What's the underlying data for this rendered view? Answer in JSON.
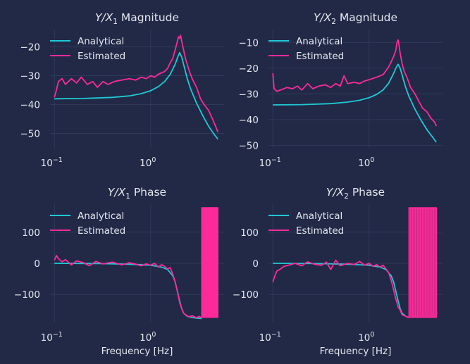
{
  "figure": {
    "background": "#212946",
    "text_color": "#e5e7ee",
    "grid_color": "#2f3a5b",
    "series_colors": {
      "Analytical": "#1ec9d4",
      "Estimated": "#fe2a9a"
    }
  },
  "chart_data": [
    {
      "type": "line",
      "title_base": "Y/X",
      "title_sub": "1",
      "title_rest": " Magnitude",
      "xlabel": "",
      "ylabel": "",
      "xscale": "log",
      "xlim": [
        0.09,
        5.8
      ],
      "ylim": [
        -55,
        -14
      ],
      "yticks": [
        -20,
        -30,
        -40,
        -50
      ],
      "ytick_labels": [
        "−20",
        "−30",
        "−40",
        "−50"
      ],
      "xticks": [
        0.1,
        1
      ],
      "xtick_base": "10",
      "xtick_exps": [
        "−1",
        "0"
      ],
      "grid": true,
      "legend_position": "top-left",
      "series": [
        {
          "name": "Analytical",
          "x": [
            0.1,
            0.2,
            0.4,
            0.6,
            0.8,
            1.0,
            1.2,
            1.4,
            1.6,
            1.8,
            1.9,
            2.0,
            2.1,
            2.2,
            2.4,
            2.6,
            3.0,
            3.5,
            4.0,
            4.5,
            5.0
          ],
          "y": [
            -38,
            -37.9,
            -37.5,
            -37,
            -36.2,
            -35.2,
            -33.8,
            -32,
            -29.5,
            -26,
            -23.8,
            -22,
            -23.5,
            -26,
            -31,
            -34.5,
            -39.5,
            -44,
            -47.5,
            -50,
            -52
          ]
        },
        {
          "name": "Estimated",
          "x": [
            0.1,
            0.105,
            0.11,
            0.12,
            0.13,
            0.14,
            0.15,
            0.17,
            0.19,
            0.22,
            0.25,
            0.28,
            0.32,
            0.36,
            0.42,
            0.5,
            0.6,
            0.7,
            0.8,
            0.9,
            1.0,
            1.1,
            1.2,
            1.3,
            1.4,
            1.5,
            1.6,
            1.7,
            1.8,
            1.9,
            1.95,
            2.0,
            2.05,
            2.1,
            2.2,
            2.3,
            2.5,
            2.7,
            3.0,
            3.3,
            3.6,
            4.0,
            4.4,
            4.8,
            5.0
          ],
          "y": [
            -37.5,
            -35,
            -32,
            -31,
            -33,
            -32,
            -31,
            -32.5,
            -30.5,
            -33,
            -32,
            -34,
            -32,
            -33,
            -32,
            -31.5,
            -31,
            -31.5,
            -30.5,
            -31,
            -30,
            -30.5,
            -29.5,
            -29,
            -28.5,
            -27.5,
            -25.5,
            -24,
            -21,
            -18,
            -16.5,
            -17,
            -16,
            -18,
            -21,
            -24,
            -28,
            -31,
            -34,
            -38,
            -40,
            -42,
            -45,
            -48,
            -49.5
          ]
        }
      ]
    },
    {
      "type": "line",
      "title_base": "Y/X",
      "title_sub": "2",
      "title_rest": " Magnitude",
      "xlabel": "",
      "ylabel": "",
      "xscale": "log",
      "xlim": [
        0.09,
        5.8
      ],
      "ylim": [
        -51,
        -5
      ],
      "yticks": [
        -10,
        -20,
        -30,
        -40,
        -50
      ],
      "ytick_labels": [
        "−10",
        "−20",
        "−30",
        "−40",
        "−50"
      ],
      "xticks": [
        0.1,
        1
      ],
      "xtick_base": "10",
      "xtick_exps": [
        "−1",
        "0"
      ],
      "grid": true,
      "legend_position": "top-left",
      "series": [
        {
          "name": "Analytical",
          "x": [
            0.1,
            0.2,
            0.4,
            0.6,
            0.8,
            1.0,
            1.2,
            1.4,
            1.6,
            1.8,
            1.9,
            2.0,
            2.1,
            2.2,
            2.4,
            2.6,
            3.0,
            3.5,
            4.0,
            4.5,
            5.0
          ],
          "y": [
            -34.3,
            -34.2,
            -33.8,
            -33.2,
            -32.5,
            -31.5,
            -30.2,
            -28.5,
            -25.8,
            -22,
            -20,
            -18.5,
            -20,
            -22.5,
            -27.5,
            -31,
            -36,
            -40.5,
            -44,
            -46.5,
            -48.8
          ]
        },
        {
          "name": "Estimated",
          "x": [
            0.1,
            0.103,
            0.11,
            0.12,
            0.14,
            0.16,
            0.18,
            0.2,
            0.23,
            0.26,
            0.3,
            0.35,
            0.4,
            0.45,
            0.5,
            0.55,
            0.6,
            0.7,
            0.8,
            0.9,
            1.0,
            1.1,
            1.2,
            1.3,
            1.4,
            1.5,
            1.6,
            1.7,
            1.8,
            1.9,
            1.95,
            2.0,
            2.05,
            2.1,
            2.2,
            2.3,
            2.5,
            2.7,
            3.0,
            3.3,
            3.6,
            4.0,
            4.4,
            4.8,
            5.0
          ],
          "y": [
            -22,
            -28,
            -29,
            -28.5,
            -27.5,
            -28,
            -27,
            -28.5,
            -26,
            -28,
            -27,
            -26.5,
            -27.5,
            -26,
            -27,
            -23,
            -26,
            -25.5,
            -26,
            -25,
            -24.5,
            -24,
            -23.5,
            -23,
            -22.5,
            -21,
            -19.5,
            -17.5,
            -15.5,
            -13,
            -10,
            -9,
            -11,
            -14,
            -18,
            -21,
            -24,
            -27.5,
            -30,
            -33,
            -35.5,
            -37,
            -39.5,
            -41,
            -42.5
          ]
        }
      ]
    },
    {
      "type": "line",
      "title_base": "Y/X",
      "title_sub": "1",
      "title_rest": " Phase",
      "xlabel": "Frequency [Hz]",
      "ylabel": "",
      "xscale": "log",
      "xlim": [
        0.09,
        5.8
      ],
      "ylim": [
        -190,
        190
      ],
      "yticks": [
        100,
        0,
        -100
      ],
      "ytick_labels": [
        "100",
        "0",
        "−100"
      ],
      "xticks": [
        0.1,
        1
      ],
      "xtick_base": "10",
      "xtick_exps": [
        "−1",
        "0"
      ],
      "grid": true,
      "legend_position": "top-left",
      "wrap_band": {
        "x_start": 3.4,
        "x_end": 5.0,
        "y_top": 180,
        "y_bottom": -175
      },
      "series": [
        {
          "name": "Analytical",
          "x": [
            0.1,
            0.3,
            0.6,
            1.0,
            1.3,
            1.5,
            1.7,
            1.8,
            1.9,
            2.0,
            2.1,
            2.2,
            2.4,
            2.7,
            3.0,
            3.4
          ],
          "y": [
            0,
            -1,
            -3,
            -6,
            -12,
            -20,
            -40,
            -60,
            -90,
            -120,
            -145,
            -160,
            -170,
            -174,
            -176,
            -177
          ]
        },
        {
          "name": "Estimated",
          "x": [
            0.1,
            0.105,
            0.11,
            0.12,
            0.13,
            0.15,
            0.17,
            0.2,
            0.23,
            0.27,
            0.32,
            0.4,
            0.5,
            0.6,
            0.7,
            0.8,
            0.9,
            1.0,
            1.1,
            1.2,
            1.3,
            1.4,
            1.5,
            1.6,
            1.7,
            1.8,
            1.9,
            2.0,
            2.1,
            2.2,
            2.3,
            2.5,
            2.7,
            3.0,
            3.2,
            3.4
          ],
          "y": [
            10,
            25,
            15,
            5,
            12,
            -5,
            8,
            2,
            -8,
            6,
            -2,
            4,
            -5,
            2,
            -3,
            -8,
            -2,
            -6,
            0,
            -12,
            -4,
            -10,
            -18,
            -14,
            -35,
            -60,
            -90,
            -125,
            -145,
            -160,
            -165,
            -172,
            -168,
            -175,
            -170,
            -176
          ]
        }
      ]
    },
    {
      "type": "line",
      "title_base": "Y/X",
      "title_sub": "2",
      "title_rest": " Phase",
      "xlabel": "Frequency [Hz]",
      "ylabel": "",
      "xscale": "log",
      "xlim": [
        0.09,
        5.8
      ],
      "ylim": [
        -190,
        190
      ],
      "yticks": [
        100,
        0,
        -100
      ],
      "ytick_labels": [
        "100",
        "0",
        "−100"
      ],
      "xticks": [
        0.1,
        1
      ],
      "xtick_base": "10",
      "xtick_exps": [
        "−1",
        "0"
      ],
      "grid": true,
      "legend_position": "top-left",
      "wrap_band": {
        "x_start": 2.6,
        "x_end": 5.0,
        "y_top": 180,
        "y_bottom": -175
      },
      "series": [
        {
          "name": "Analytical",
          "x": [
            0.1,
            0.3,
            0.6,
            1.0,
            1.3,
            1.5,
            1.7,
            1.8,
            1.9,
            2.0,
            2.1,
            2.2,
            2.4,
            2.6
          ],
          "y": [
            0,
            -1,
            -3,
            -6,
            -12,
            -20,
            -40,
            -60,
            -90,
            -120,
            -145,
            -160,
            -170,
            -174
          ]
        },
        {
          "name": "Estimated",
          "x": [
            0.1,
            0.105,
            0.11,
            0.12,
            0.13,
            0.15,
            0.17,
            0.2,
            0.23,
            0.27,
            0.32,
            0.36,
            0.4,
            0.45,
            0.5,
            0.6,
            0.7,
            0.8,
            0.9,
            1.0,
            1.1,
            1.2,
            1.3,
            1.4,
            1.5,
            1.6,
            1.7,
            1.8,
            1.9,
            2.0,
            2.1,
            2.2,
            2.4,
            2.6
          ],
          "y": [
            -60,
            -40,
            -25,
            -18,
            -10,
            -5,
            0,
            -8,
            5,
            -3,
            -6,
            4,
            -20,
            10,
            -8,
            0,
            -4,
            6,
            -6,
            0,
            -10,
            -4,
            -12,
            -6,
            -18,
            -30,
            -55,
            -85,
            -115,
            -140,
            -150,
            -165,
            -170,
            -175
          ]
        }
      ]
    }
  ]
}
